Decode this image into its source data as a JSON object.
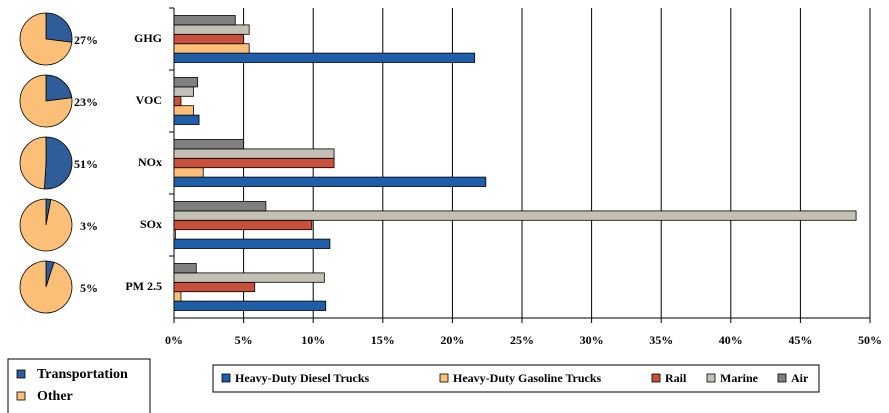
{
  "chart_data": [
    {
      "type": "bar",
      "orientation": "horizontal",
      "categories": [
        "GHG",
        "VOC",
        "NOx",
        "SOx",
        "PM 2.5"
      ],
      "series": [
        {
          "name": "Heavy-Duty Diesel Trucks",
          "color": "#1f5ea8",
          "values": [
            21.6,
            1.8,
            22.4,
            11.2,
            10.9
          ]
        },
        {
          "name": "Heavy-Duty Gasoline Trucks",
          "color": "#fbbf77",
          "values": [
            5.4,
            1.4,
            2.1,
            0.1,
            0.5
          ]
        },
        {
          "name": "Rail",
          "color": "#c9513b",
          "values": [
            5.0,
            0.5,
            11.5,
            9.9,
            5.8
          ]
        },
        {
          "name": "Marine",
          "color": "#c3c0b6",
          "values": [
            5.4,
            1.4,
            11.5,
            49.0,
            10.8
          ]
        },
        {
          "name": "Air",
          "color": "#808080",
          "values": [
            4.4,
            1.7,
            5.0,
            6.6,
            1.6
          ]
        }
      ],
      "xlim": [
        0,
        50
      ],
      "xticks": [
        {
          "value": 0,
          "label": "0%"
        },
        {
          "value": 5,
          "label": "5%"
        },
        {
          "value": 10,
          "label": "10%"
        },
        {
          "value": 15,
          "label": "15%"
        },
        {
          "value": 20,
          "label": "20%"
        },
        {
          "value": 25,
          "label": "25%"
        },
        {
          "value": 30,
          "label": "30%"
        },
        {
          "value": 35,
          "label": "35%"
        },
        {
          "value": 40,
          "label": "40%"
        },
        {
          "value": 45,
          "label": "45%"
        },
        {
          "value": 50,
          "label": "50%"
        }
      ],
      "grid": true,
      "legend": "bottom"
    },
    {
      "type": "pie",
      "series": [
        {
          "name": "Transportation",
          "color": "#2f5d9a",
          "values": [
            27,
            23,
            51,
            3,
            5
          ],
          "value_labels": [
            "27%",
            "23%",
            "51%",
            "3%",
            "5%"
          ]
        },
        {
          "name": "Other",
          "color": "#fbbf77",
          "values": [
            73,
            77,
            49,
            97,
            95
          ]
        }
      ],
      "legend": "bottom-left"
    }
  ]
}
